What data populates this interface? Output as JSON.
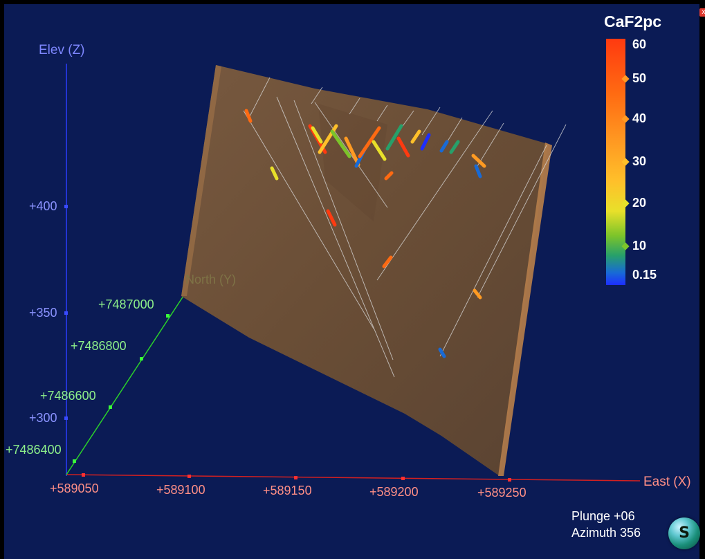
{
  "axes": {
    "z_label": "Elev (Z)",
    "y_label": "North (Y)",
    "x_label": "East (X)",
    "z_ticks": [
      "+400",
      "+350",
      "+300"
    ],
    "y_ticks": [
      "+7487000",
      "+7486800",
      "+7486600",
      "+7486400"
    ],
    "x_ticks": [
      "+589050",
      "+589100",
      "+589150",
      "+589200",
      "+589250"
    ]
  },
  "legend": {
    "title": "CaF2pc",
    "labels": [
      "60",
      "50",
      "40",
      "30",
      "20",
      "10",
      "0.15"
    ]
  },
  "view": {
    "plunge": "Plunge +06",
    "azimuth": "Azimuth 356",
    "compass_letter": "S"
  },
  "controls": {
    "close_label": "x"
  },
  "colors": {
    "background": "#0b1b55",
    "surface": "#7a5a3c",
    "axis_x": "#e02020",
    "axis_y": "#2ad12a",
    "axis_z": "#2b3cff"
  }
}
